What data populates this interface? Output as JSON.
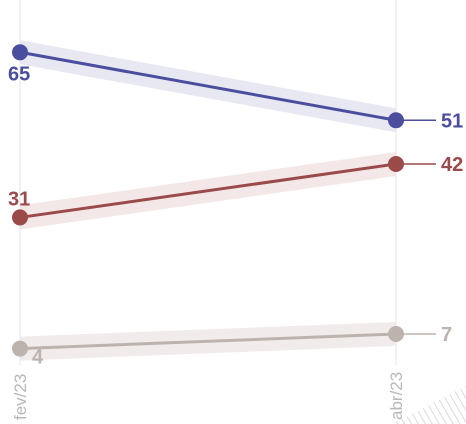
{
  "chart_data": {
    "type": "line",
    "categories": [
      "fev/23",
      "abr/23"
    ],
    "series": [
      {
        "values": [
          65,
          51
        ],
        "color": "#4b4e9e",
        "band_color": "#e6e6f2"
      },
      {
        "values": [
          31,
          42
        ],
        "color": "#9b4a4a",
        "band_color": "#f3e4e4"
      },
      {
        "values": [
          4,
          7
        ],
        "color": "#bdb3ae",
        "band_color": "#efe9e9"
      }
    ],
    "ylim": [
      0,
      70
    ],
    "xlabel": "",
    "ylabel": "",
    "title": "",
    "grid": "vertical"
  }
}
